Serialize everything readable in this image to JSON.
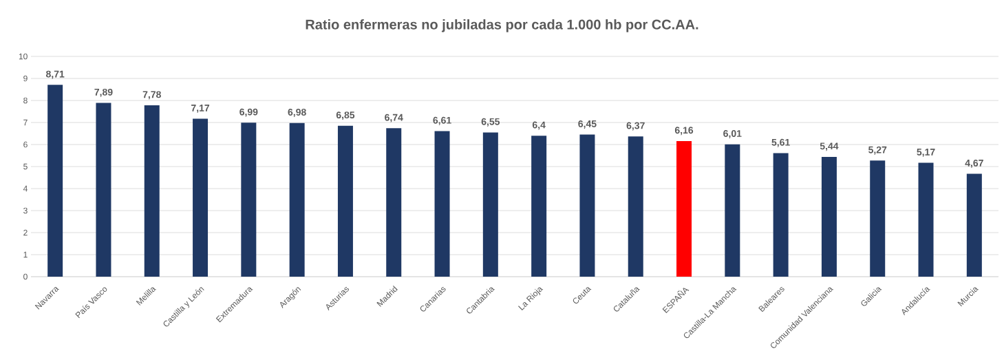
{
  "chart_data": {
    "type": "bar",
    "title": "Ratio enfermeras no jubiladas por cada 1.000 hb por CC.AA.",
    "categories": [
      "Navarra",
      "País Vasco",
      "Melilla",
      "Castilla y León",
      "Extremadura",
      "Aragón",
      "Asturias",
      "Madrid",
      "Canarias",
      "Cantabria",
      "La Rioja",
      "Ceuta",
      "Cataluña",
      "ESPAÑA",
      "Castilla-La Mancha",
      "Baleares",
      "Comunidad Valenciana",
      "Galicia",
      "Andalucía",
      "Murcia"
    ],
    "values": [
      8.71,
      7.89,
      7.78,
      7.17,
      6.99,
      6.98,
      6.85,
      6.74,
      6.61,
      6.55,
      6.4,
      6.45,
      6.37,
      6.16,
      6.01,
      5.61,
      5.44,
      5.27,
      5.17,
      4.67
    ],
    "value_labels": [
      "8,71",
      "7,89",
      "7,78",
      "7,17",
      "6,99",
      "6,98",
      "6,85",
      "6,74",
      "6,61",
      "6,55",
      "6,4",
      "6,45",
      "6,37",
      "6,16",
      "6,01",
      "5,61",
      "5,44",
      "5,27",
      "5,17",
      "4,67"
    ],
    "colors": [
      "#1f3864",
      "#1f3864",
      "#1f3864",
      "#1f3864",
      "#1f3864",
      "#1f3864",
      "#1f3864",
      "#1f3864",
      "#1f3864",
      "#1f3864",
      "#1f3864",
      "#1f3864",
      "#1f3864",
      "#ff0000",
      "#1f3864",
      "#1f3864",
      "#1f3864",
      "#1f3864",
      "#1f3864",
      "#1f3864"
    ],
    "ylim": [
      0,
      10
    ],
    "yticks": [
      0,
      1,
      2,
      3,
      4,
      5,
      6,
      7,
      8,
      9,
      10
    ],
    "grid": "y"
  }
}
